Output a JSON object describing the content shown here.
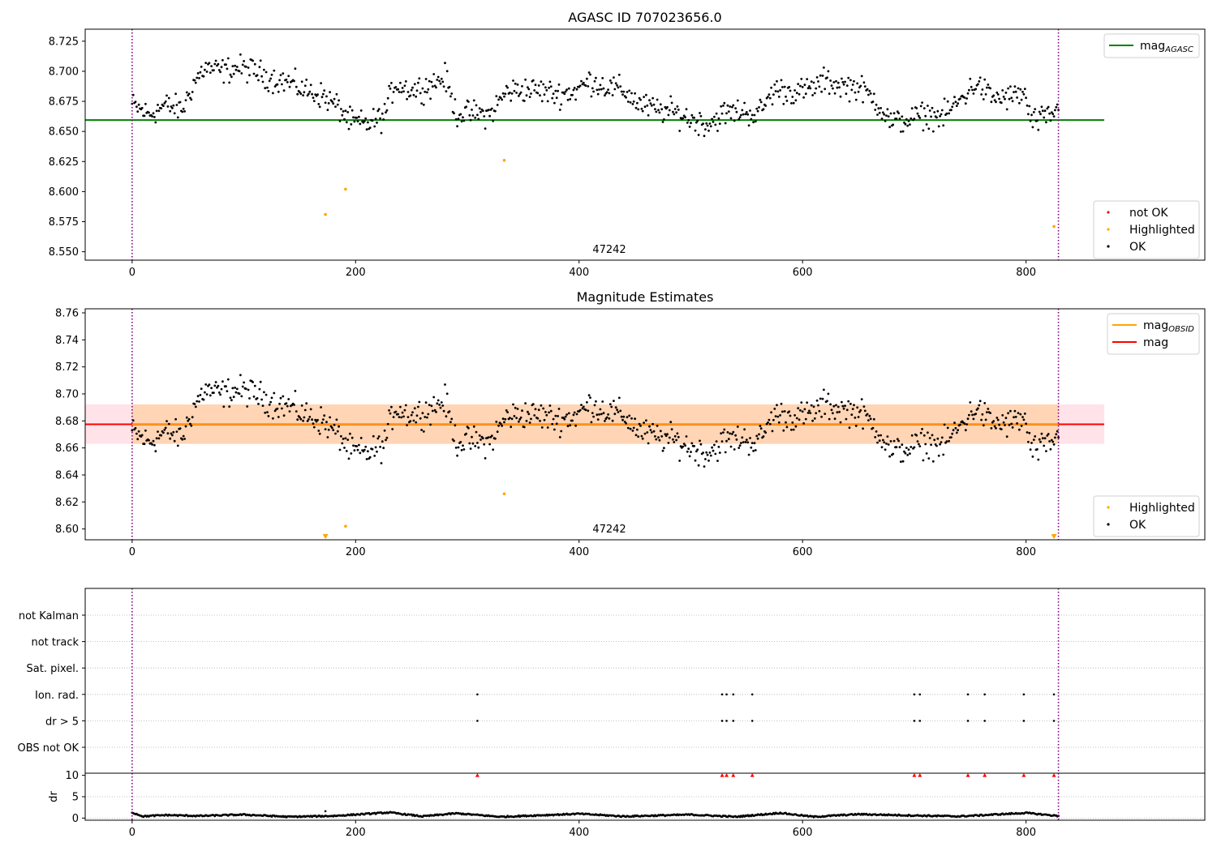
{
  "figure": {
    "title_top": "AGASC ID 707023656.0",
    "title_mid": "Magnitude Estimates",
    "obsid_label": "47242"
  },
  "chart_data": [
    {
      "type": "scatter",
      "title": "AGASC ID 707023656.0",
      "xlim": [
        -42,
        960
      ],
      "ylim": [
        8.543,
        8.735
      ],
      "x_ticks": [
        0,
        200,
        400,
        600,
        800
      ],
      "y_ticks": [
        8.55,
        8.575,
        8.6,
        8.625,
        8.65,
        8.675,
        8.7,
        8.725
      ],
      "y_tick_format": 3,
      "vlines_x": [
        0,
        829
      ],
      "obsid_annotation": {
        "text": "47242",
        "x": 414
      },
      "hlines": [
        {
          "name": "mag_AGASC",
          "y": 8.6595,
          "x_range": [
            -42,
            870
          ],
          "color": "#008000"
        }
      ],
      "band": null,
      "ok_points_key": "ok_series",
      "highlighted_points": [
        [
          173,
          8.581
        ],
        [
          191,
          8.602
        ],
        [
          333,
          8.626
        ],
        [
          825,
          8.571
        ]
      ],
      "legends": [
        {
          "loc": "upper right",
          "entries": [
            {
              "kind": "line",
              "color": "#008000",
              "label": "mag",
              "sub": "AGASC"
            }
          ]
        },
        {
          "loc": "lower right",
          "entries": [
            {
              "kind": "dot",
              "color": "#ff0000",
              "label": "not OK"
            },
            {
              "kind": "dot",
              "color": "#ffa500",
              "label": "Highlighted"
            },
            {
              "kind": "dot",
              "color": "#000000",
              "label": "OK"
            }
          ]
        }
      ]
    },
    {
      "type": "scatter",
      "title": "Magnitude Estimates",
      "xlim": [
        -42,
        960
      ],
      "ylim": [
        8.592,
        8.763
      ],
      "x_ticks": [
        0,
        200,
        400,
        600,
        800
      ],
      "y_ticks": [
        8.6,
        8.62,
        8.64,
        8.66,
        8.68,
        8.7,
        8.72,
        8.74,
        8.76
      ],
      "y_tick_format": 2,
      "vlines_x": [
        0,
        829
      ],
      "obsid_annotation": {
        "text": "47242",
        "x": 414
      },
      "hlines": [
        {
          "name": "mag",
          "y": 8.6775,
          "x_range": [
            -42,
            870
          ],
          "color": "#ff0000"
        },
        {
          "name": "mag_OBSID",
          "y": 8.6778,
          "x_range": [
            0,
            829
          ],
          "color": "#ffa500"
        }
      ],
      "band": [
        {
          "y0": 8.663,
          "y1": 8.6922,
          "x_range": [
            -42,
            870
          ],
          "color": "#ffc0cb",
          "opacity": 0.45
        },
        {
          "y0": 8.663,
          "y1": 8.6922,
          "x_range": [
            0,
            829
          ],
          "color": "#ffa500",
          "opacity": 0.22
        }
      ],
      "ok_points_key": "ok_series",
      "highlighted_points": [
        [
          191,
          8.602
        ],
        [
          333,
          8.626
        ]
      ],
      "below_range_markers": [
        [
          173,
          8.594
        ],
        [
          825,
          8.594
        ]
      ],
      "legends": [
        {
          "loc": "upper right",
          "entries": [
            {
              "kind": "line",
              "color": "#ffa500",
              "label": "mag",
              "sub": "OBSID"
            },
            {
              "kind": "line",
              "color": "#ff0000",
              "label": "mag"
            }
          ]
        },
        {
          "loc": "lower right",
          "entries": [
            {
              "kind": "dot",
              "color": "#ffa500",
              "label": "Highlighted"
            },
            {
              "kind": "dot",
              "color": "#000000",
              "label": "OK"
            }
          ]
        }
      ]
    },
    {
      "type": "scatter",
      "title": "",
      "xlim": [
        -42,
        960
      ],
      "categories": [
        "not Kalman",
        "not track",
        "Sat. pixel.",
        "Ion. rad.",
        "dr > 5",
        "OBS not OK"
      ],
      "flag_points": {
        "Ion. rad.": [
          309,
          528,
          532,
          538,
          555,
          700,
          705,
          748,
          763,
          798,
          825
        ],
        "dr > 5": [
          309,
          528,
          532,
          538,
          555,
          700,
          705,
          748,
          763,
          798,
          825
        ]
      },
      "vlines_x": [
        0,
        829
      ]
    },
    {
      "type": "scatter",
      "ylabel": "dr",
      "xlim": [
        -42,
        960
      ],
      "ylim": [
        -0.5,
        10.5
      ],
      "x_ticks": [
        0,
        200,
        400,
        600,
        800
      ],
      "y_ticks": [
        0,
        5,
        10
      ],
      "vlines_x": [
        0,
        829
      ],
      "dr_outliers": [
        309,
        528,
        532,
        538,
        555,
        700,
        705,
        748,
        763,
        798,
        825
      ],
      "dr_outlier_value": 10,
      "dr_extra_points": [
        [
          173,
          1.6
        ]
      ]
    }
  ],
  "ok_series": {
    "x_range": [
      0,
      829
    ],
    "step": 1,
    "segments": [
      {
        "x": 0,
        "y": 8.672
      },
      {
        "x": 15,
        "y": 8.664
      },
      {
        "x": 30,
        "y": 8.672
      },
      {
        "x": 45,
        "y": 8.668
      },
      {
        "x": 55,
        "y": 8.69
      },
      {
        "x": 65,
        "y": 8.703
      },
      {
        "x": 80,
        "y": 8.7
      },
      {
        "x": 95,
        "y": 8.703
      },
      {
        "x": 110,
        "y": 8.7
      },
      {
        "x": 125,
        "y": 8.694
      },
      {
        "x": 140,
        "y": 8.691
      },
      {
        "x": 155,
        "y": 8.684
      },
      {
        "x": 170,
        "y": 8.68
      },
      {
        "x": 185,
        "y": 8.67
      },
      {
        "x": 195,
        "y": 8.658
      },
      {
        "x": 210,
        "y": 8.656
      },
      {
        "x": 225,
        "y": 8.662
      },
      {
        "x": 235,
        "y": 8.69
      },
      {
        "x": 250,
        "y": 8.684
      },
      {
        "x": 265,
        "y": 8.688
      },
      {
        "x": 280,
        "y": 8.695
      },
      {
        "x": 290,
        "y": 8.665
      },
      {
        "x": 305,
        "y": 8.665
      },
      {
        "x": 320,
        "y": 8.664
      },
      {
        "x": 335,
        "y": 8.683
      },
      {
        "x": 350,
        "y": 8.685
      },
      {
        "x": 365,
        "y": 8.684
      },
      {
        "x": 380,
        "y": 8.681
      },
      {
        "x": 395,
        "y": 8.683
      },
      {
        "x": 410,
        "y": 8.692
      },
      {
        "x": 425,
        "y": 8.687
      },
      {
        "x": 440,
        "y": 8.684
      },
      {
        "x": 455,
        "y": 8.672
      },
      {
        "x": 470,
        "y": 8.668
      },
      {
        "x": 485,
        "y": 8.666
      },
      {
        "x": 500,
        "y": 8.66
      },
      {
        "x": 515,
        "y": 8.656
      },
      {
        "x": 530,
        "y": 8.665
      },
      {
        "x": 545,
        "y": 8.667
      },
      {
        "x": 560,
        "y": 8.664
      },
      {
        "x": 575,
        "y": 8.685
      },
      {
        "x": 590,
        "y": 8.683
      },
      {
        "x": 605,
        "y": 8.684
      },
      {
        "x": 620,
        "y": 8.692
      },
      {
        "x": 635,
        "y": 8.688
      },
      {
        "x": 650,
        "y": 8.687
      },
      {
        "x": 665,
        "y": 8.676
      },
      {
        "x": 680,
        "y": 8.657
      },
      {
        "x": 695,
        "y": 8.66
      },
      {
        "x": 710,
        "y": 8.664
      },
      {
        "x": 725,
        "y": 8.662
      },
      {
        "x": 740,
        "y": 8.675
      },
      {
        "x": 755,
        "y": 8.69
      },
      {
        "x": 770,
        "y": 8.678
      },
      {
        "x": 785,
        "y": 8.678
      },
      {
        "x": 798,
        "y": 8.682
      },
      {
        "x": 805,
        "y": 8.658
      },
      {
        "x": 815,
        "y": 8.66
      },
      {
        "x": 829,
        "y": 8.668
      }
    ],
    "scatter": 0.008
  },
  "dr_series": {
    "segments": [
      {
        "x": 0,
        "y": 1.3
      },
      {
        "x": 10,
        "y": 0.4
      },
      {
        "x": 30,
        "y": 0.7
      },
      {
        "x": 60,
        "y": 0.5
      },
      {
        "x": 100,
        "y": 0.8
      },
      {
        "x": 140,
        "y": 0.3
      },
      {
        "x": 180,
        "y": 0.5
      },
      {
        "x": 230,
        "y": 1.3
      },
      {
        "x": 260,
        "y": 0.4
      },
      {
        "x": 290,
        "y": 1.1
      },
      {
        "x": 330,
        "y": 0.3
      },
      {
        "x": 400,
        "y": 1.0
      },
      {
        "x": 440,
        "y": 0.4
      },
      {
        "x": 500,
        "y": 0.8
      },
      {
        "x": 540,
        "y": 0.3
      },
      {
        "x": 580,
        "y": 1.2
      },
      {
        "x": 610,
        "y": 0.3
      },
      {
        "x": 650,
        "y": 0.9
      },
      {
        "x": 700,
        "y": 0.6
      },
      {
        "x": 740,
        "y": 0.4
      },
      {
        "x": 800,
        "y": 1.2
      },
      {
        "x": 829,
        "y": 0.5
      }
    ],
    "scatter": 0.15
  },
  "colors": {
    "ok": "#000000",
    "highlighted": "#ffa500",
    "not_ok": "#ff0000",
    "vline": "#800080",
    "grid": "#b0b0b0"
  }
}
